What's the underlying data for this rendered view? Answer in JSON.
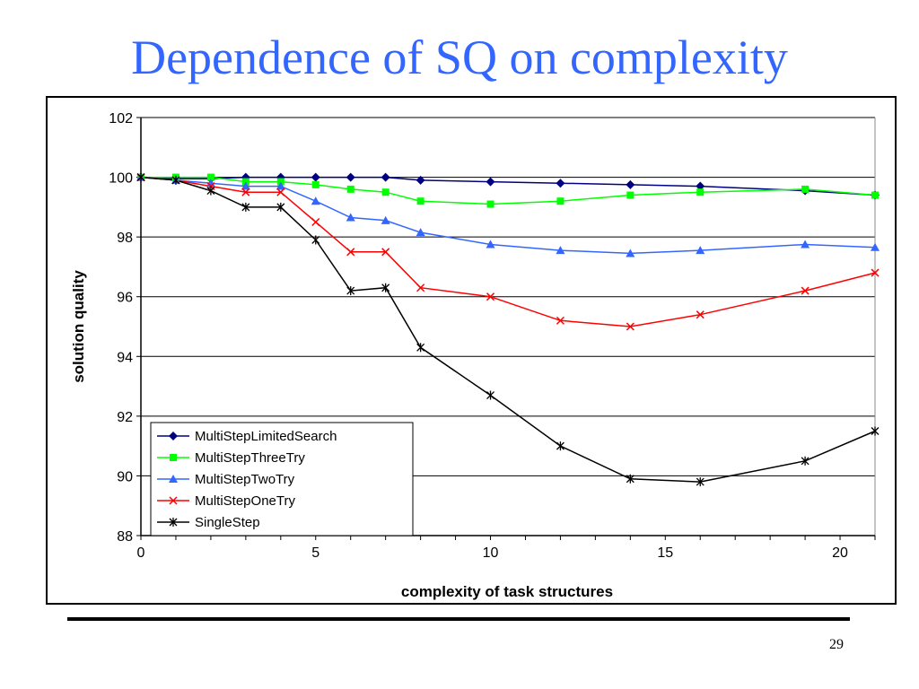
{
  "slide": {
    "title": "Dependence of SQ on complexity",
    "page_number": "29"
  },
  "chart_data": {
    "type": "line",
    "xlabel": "complexity of task structures",
    "ylabel": "solution quality",
    "xlim": [
      0,
      21
    ],
    "ylim": [
      88,
      102
    ],
    "xticks": [
      0,
      5,
      10,
      15,
      20
    ],
    "yticks": [
      88,
      90,
      92,
      94,
      96,
      98,
      100,
      102
    ],
    "grid": "horizontal",
    "legend_position": "bottom-left",
    "series": [
      {
        "name": "MultiStepLimitedSearch",
        "color": "#000080",
        "marker": "diamond",
        "x": [
          0,
          1,
          2,
          3,
          4,
          5,
          6,
          7,
          8,
          10,
          12,
          14,
          16,
          19,
          21
        ],
        "y": [
          100,
          99.95,
          99.95,
          100,
          100,
          100,
          100,
          100,
          99.9,
          99.85,
          99.8,
          99.75,
          99.7,
          99.55,
          99.4
        ]
      },
      {
        "name": "MultiStepThreeTry",
        "color": "#00ff00",
        "marker": "square",
        "x": [
          0,
          1,
          2,
          3,
          4,
          5,
          6,
          7,
          8,
          10,
          12,
          14,
          16,
          19,
          21
        ],
        "y": [
          100,
          100,
          100,
          99.85,
          99.85,
          99.75,
          99.6,
          99.5,
          99.2,
          99.1,
          99.2,
          99.4,
          99.5,
          99.6,
          99.4
        ]
      },
      {
        "name": "MultiStepTwoTry",
        "color": "#3366ff",
        "marker": "triangle",
        "x": [
          0,
          1,
          2,
          3,
          4,
          5,
          6,
          7,
          8,
          10,
          12,
          14,
          16,
          19,
          21
        ],
        "y": [
          100,
          99.9,
          99.8,
          99.7,
          99.7,
          99.2,
          98.65,
          98.55,
          98.15,
          97.75,
          97.55,
          97.45,
          97.55,
          97.75,
          97.65
        ]
      },
      {
        "name": "MultiStepOneTry",
        "color": "#ff0000",
        "marker": "x",
        "x": [
          0,
          1,
          2,
          3,
          4,
          5,
          6,
          7,
          8,
          10,
          12,
          14,
          16,
          19,
          21
        ],
        "y": [
          100,
          99.9,
          99.7,
          99.5,
          99.5,
          98.5,
          97.5,
          97.5,
          96.3,
          96.0,
          95.2,
          95.0,
          95.4,
          96.2,
          96.8
        ]
      },
      {
        "name": "SingleStep",
        "color": "#000000",
        "marker": "star",
        "x": [
          0,
          1,
          2,
          3,
          4,
          5,
          6,
          7,
          8,
          10,
          12,
          14,
          16,
          19,
          21
        ],
        "y": [
          100,
          99.9,
          99.55,
          99.0,
          99.0,
          97.9,
          96.2,
          96.3,
          94.3,
          92.7,
          91.0,
          89.9,
          89.8,
          90.5,
          91.5
        ]
      }
    ]
  }
}
